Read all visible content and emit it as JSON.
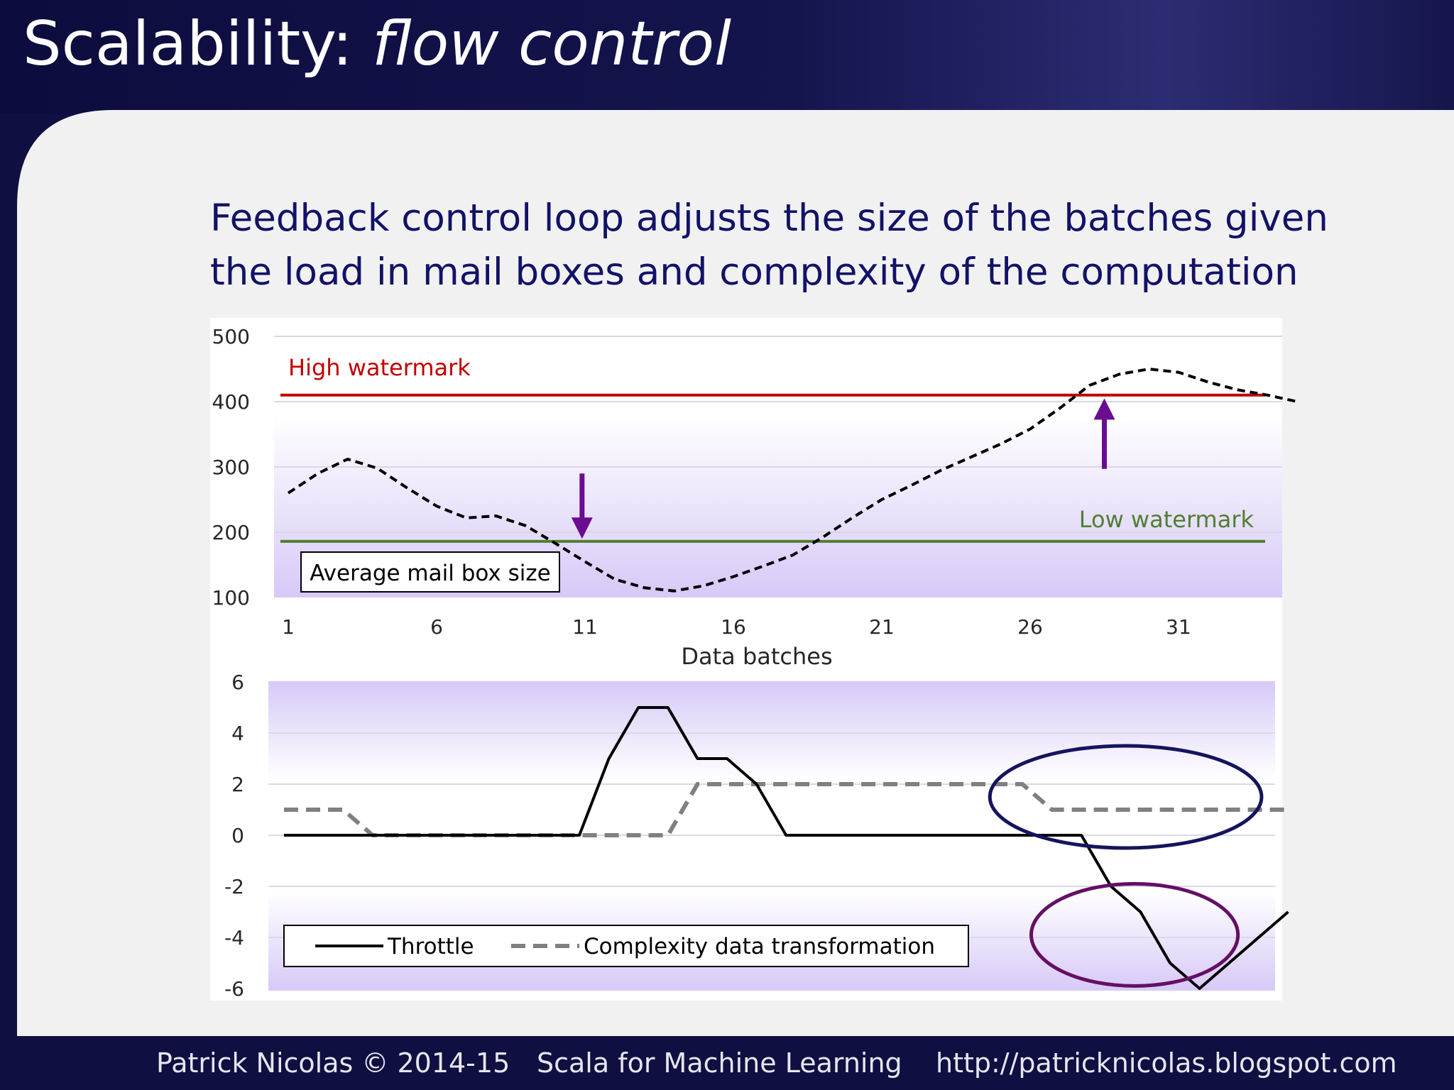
{
  "slide": {
    "title": "Scalability:",
    "title_emphasis": "flow control",
    "subtitle": "Feedback control loop adjusts the size of the batches given the load in mail boxes and complexity of the computation"
  },
  "footer": {
    "author": "Patrick Nicolas © 2014-15",
    "book": "Scala for Machine Learning",
    "url": "http://patricknicolas.blogspot.com"
  },
  "colors": {
    "slide_background": "#0f0f42",
    "panel": "#f1f1f2",
    "high_watermark": "#c00000",
    "low_watermark": "#507e32",
    "arrow": "#6a0d91",
    "ellipse_complexity": "#14145e",
    "ellipse_throttle": "#640f64",
    "mailbox_line": "#000000",
    "throttle_line": "#000000",
    "complexity_line": "#808080",
    "gradient_light": "#ffffff",
    "gradient_dark": "#d7c9f7"
  },
  "chart_data": [
    {
      "type": "line",
      "title": "",
      "xlabel": "Data batches",
      "ylabel": "",
      "xlim": [
        1,
        35
      ],
      "ylim": [
        100,
        500
      ],
      "xticks": [
        "1",
        "6",
        "11",
        "16",
        "21",
        "26",
        "31"
      ],
      "yticks": [
        "500",
        "400",
        "300",
        "200",
        "100"
      ],
      "grid": true,
      "series": [
        {
          "name": "Average mail box size",
          "style": "dashed",
          "x": [
            1,
            2,
            3,
            4,
            5,
            6,
            7,
            8,
            9,
            10,
            11,
            12,
            13,
            14,
            15,
            16,
            17,
            18,
            19,
            20,
            21,
            22,
            23,
            24,
            25,
            26,
            27,
            28,
            29,
            30,
            31,
            32,
            33,
            34,
            35
          ],
          "y": [
            260,
            290,
            312,
            298,
            268,
            240,
            222,
            225,
            210,
            183,
            155,
            128,
            115,
            110,
            118,
            132,
            148,
            165,
            192,
            222,
            250,
            272,
            295,
            315,
            335,
            358,
            390,
            425,
            442,
            450,
            445,
            430,
            418,
            410,
            400
          ]
        }
      ],
      "reference_lines": [
        {
          "label": "High watermark",
          "y": 410
        },
        {
          "label": "Low watermark",
          "y": 186
        }
      ],
      "arrows": [
        {
          "x": 10.9,
          "from": 290,
          "to": 190,
          "direction": "down"
        },
        {
          "x": 28.5,
          "from": 297,
          "to": 405,
          "direction": "up"
        }
      ]
    },
    {
      "type": "line",
      "title": "",
      "xlabel": "",
      "ylabel": "",
      "xlim": [
        1,
        35
      ],
      "ylim": [
        -6,
        6
      ],
      "yticks": [
        "6",
        "4",
        "2",
        "0",
        "-2",
        "-4",
        "-6"
      ],
      "grid": true,
      "legend": "bottom-left",
      "series": [
        {
          "name": "Throttle",
          "style": "solid",
          "x": [
            1,
            2,
            3,
            4,
            5,
            6,
            7,
            8,
            9,
            10,
            11,
            12,
            13,
            14,
            15,
            16,
            17,
            18,
            19,
            20,
            21,
            22,
            23,
            24,
            25,
            26,
            27,
            28,
            29,
            30,
            31,
            32,
            33,
            34,
            35
          ],
          "y": [
            0,
            0,
            0,
            0,
            0,
            0,
            0,
            0,
            0,
            0,
            0,
            3,
            5,
            5,
            3,
            3,
            2,
            0,
            0,
            0,
            0,
            0,
            0,
            0,
            0,
            0,
            0,
            0,
            -2,
            -3,
            -5,
            -6,
            -5,
            -4,
            -3
          ]
        },
        {
          "name": "Complexity data transformation",
          "style": "dashed",
          "x": [
            1,
            2,
            3,
            4,
            5,
            6,
            7,
            8,
            9,
            10,
            11,
            12,
            13,
            14,
            15,
            16,
            17,
            18,
            19,
            20,
            21,
            22,
            23,
            24,
            25,
            26,
            27,
            28,
            29,
            30,
            31,
            32,
            33,
            34,
            35
          ],
          "y": [
            1,
            1,
            1,
            0,
            0,
            0,
            0,
            0,
            0,
            0,
            0,
            0,
            0,
            0,
            2,
            2,
            2,
            2,
            2,
            2,
            2,
            2,
            2,
            2,
            2,
            2,
            1,
            1,
            1,
            1,
            1,
            1,
            1,
            1,
            1
          ]
        }
      ],
      "highlights": [
        {
          "target": "Complexity data transformation",
          "cx": 29.5,
          "cy": 1.5,
          "rx": 4.6,
          "ry": 2
        },
        {
          "target": "Throttle",
          "cx": 29.8,
          "cy": -3.9,
          "rx": 3.5,
          "ry": 2
        }
      ]
    }
  ]
}
